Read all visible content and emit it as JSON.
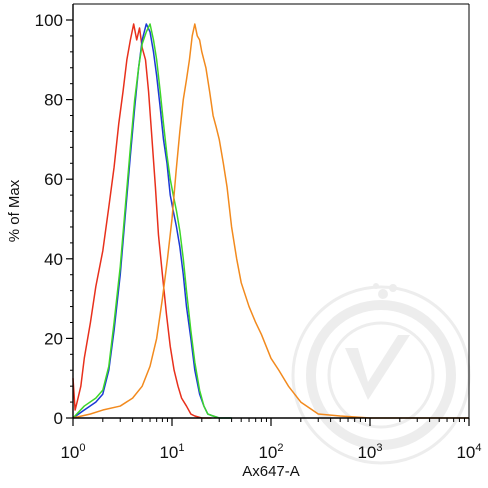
{
  "chart_data": {
    "type": "line",
    "title": "",
    "xlabel": "Ax647-A",
    "ylabel": "% of Max",
    "x_scale": "log",
    "xlim": [
      1,
      10000
    ],
    "ylim": [
      0,
      100
    ],
    "x_ticks": [
      {
        "value": 1,
        "base": "10",
        "exp": "0"
      },
      {
        "value": 10,
        "base": "10",
        "exp": "1"
      },
      {
        "value": 100,
        "base": "10",
        "exp": "2"
      },
      {
        "value": 1000,
        "base": "10",
        "exp": "3"
      },
      {
        "value": 10000,
        "base": "10",
        "exp": "4"
      }
    ],
    "y_ticks": [
      0,
      20,
      40,
      60,
      80,
      100
    ],
    "grid": false,
    "legend": "none",
    "series": [
      {
        "color": "#e8301c",
        "x": [
          1,
          1.05,
          1.1,
          1.2,
          1.3,
          1.5,
          1.7,
          2.0,
          2.3,
          2.6,
          2.9,
          3.2,
          3.5,
          3.8,
          4.1,
          4.4,
          4.7,
          5.0,
          5.4,
          5.8,
          6.2,
          6.8,
          7.3,
          8.0,
          8.8,
          9.6,
          10.5,
          11.5,
          12.5,
          14,
          15.5,
          17,
          20,
          25
        ],
        "y": [
          10,
          2,
          4,
          8,
          15,
          24,
          33,
          42,
          53,
          63,
          74,
          82,
          90,
          95,
          99,
          95,
          98,
          93,
          90,
          82,
          72,
          58,
          46,
          36,
          26,
          18,
          12,
          8,
          5,
          3,
          1,
          0.5,
          0,
          0
        ]
      },
      {
        "color": "#1c39d6",
        "x": [
          1,
          1.3,
          1.7,
          2.0,
          2.3,
          2.6,
          3.0,
          3.4,
          3.8,
          4.2,
          4.6,
          5.0,
          5.5,
          6.0,
          6.5,
          7.0,
          7.6,
          8.2,
          8.9,
          9.6,
          10.3,
          11.1,
          12,
          13,
          14,
          15.5,
          17,
          19,
          21,
          23,
          26,
          30,
          40
        ],
        "y": [
          0,
          2,
          4,
          6,
          12,
          22,
          36,
          52,
          66,
          78,
          88,
          95,
          99,
          97,
          92,
          86,
          78,
          70,
          64,
          56,
          52,
          48,
          43,
          36,
          28,
          20,
          12,
          6,
          3,
          1,
          0.5,
          0,
          0
        ]
      },
      {
        "color": "#3ed62a",
        "x": [
          1,
          1.3,
          1.7,
          2.0,
          2.3,
          2.6,
          3.0,
          3.4,
          3.8,
          4.2,
          4.6,
          5.0,
          5.5,
          6.0,
          6.5,
          7.0,
          7.6,
          8.2,
          8.9,
          9.6,
          10.3,
          11.1,
          12,
          13,
          14,
          15.5,
          17,
          19,
          21,
          23,
          26,
          30,
          40
        ],
        "y": [
          0,
          3,
          5,
          7,
          13,
          24,
          38,
          54,
          68,
          80,
          88,
          94,
          97,
          99,
          95,
          90,
          82,
          74,
          66,
          60,
          56,
          52,
          47,
          40,
          32,
          22,
          14,
          7,
          3,
          1,
          0.5,
          0,
          0
        ]
      },
      {
        "color": "#f28a1e",
        "x": [
          1,
          1.5,
          2,
          3,
          4,
          5,
          6,
          7,
          8,
          9,
          10,
          11,
          12,
          13,
          14,
          15,
          16,
          17,
          18,
          19,
          20,
          22,
          24,
          26,
          28,
          30,
          33,
          36,
          40,
          45,
          50,
          60,
          70,
          80,
          100,
          120,
          150,
          200,
          300,
          500,
          1000,
          10000
        ],
        "y": [
          0,
          1,
          2,
          3,
          5,
          8,
          13,
          20,
          30,
          40,
          50,
          62,
          72,
          80,
          85,
          90,
          96,
          99,
          96,
          95,
          92,
          88,
          82,
          76,
          73,
          70,
          64,
          58,
          48,
          40,
          34,
          28,
          24,
          21,
          15,
          12,
          8,
          4,
          1,
          0.5,
          0,
          0
        ]
      }
    ]
  }
}
